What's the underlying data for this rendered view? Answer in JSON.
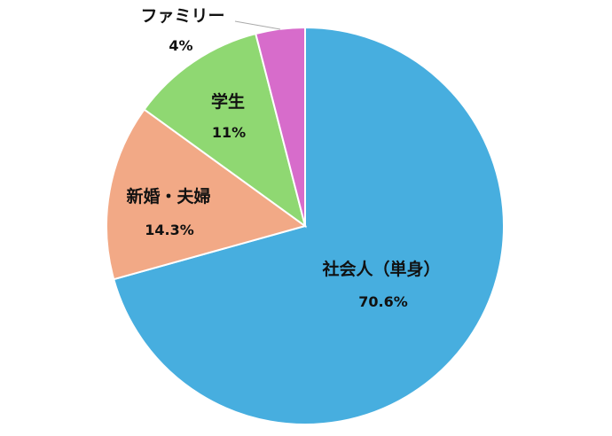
{
  "chart_data": {
    "type": "pie",
    "start": "top",
    "direction": "clockwise",
    "slices": [
      {
        "label": "社会人（単身）",
        "value": 70.6,
        "value_label": "70.6%",
        "color": "#47AEDF"
      },
      {
        "label": "新婚・夫婦",
        "value": 14.3,
        "value_label": "14.3%",
        "color": "#F2A986"
      },
      {
        "label": "学生",
        "value": 11,
        "value_label": "11%",
        "color": "#8FD872"
      },
      {
        "label": "ファミリー",
        "value": 4,
        "value_label": "4%",
        "color": "#D76CCB"
      }
    ]
  }
}
